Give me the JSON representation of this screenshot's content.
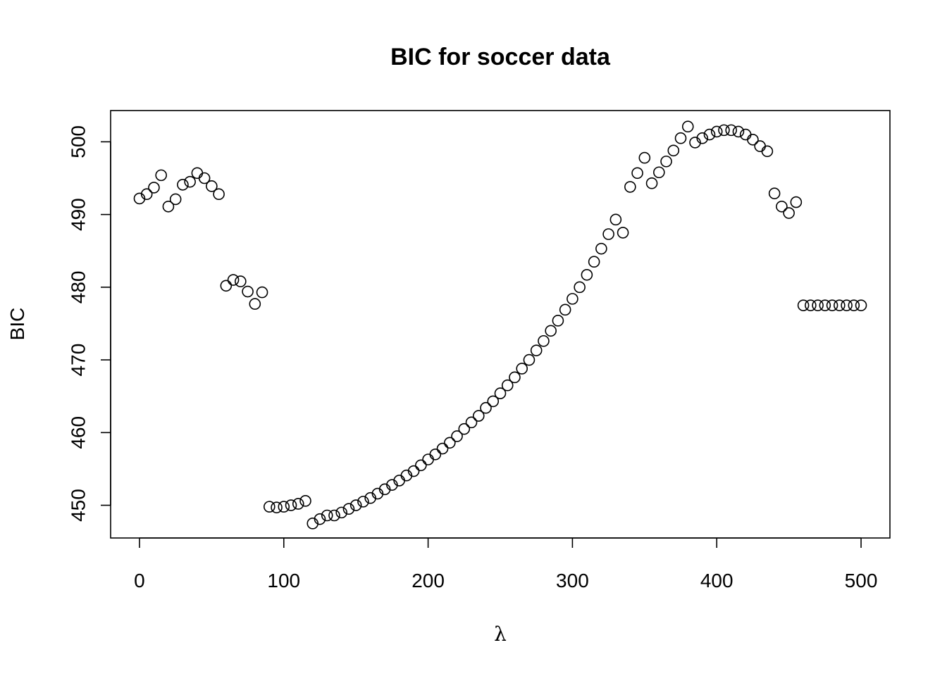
{
  "chart_data": {
    "type": "scatter",
    "title": "BIC for soccer data",
    "xlabel": "λ",
    "ylabel": "BIC",
    "xlim": [
      -20,
      520
    ],
    "ylim": [
      445.5,
      504.3
    ],
    "xticks": [
      0,
      100,
      200,
      300,
      400,
      500
    ],
    "yticks": [
      450,
      460,
      470,
      480,
      490,
      500
    ],
    "grid": false,
    "marker": "open-circle",
    "series": [
      {
        "x": [
          0,
          5,
          10,
          15,
          20,
          25,
          30,
          35,
          40,
          45,
          50,
          55,
          60,
          65,
          70,
          75,
          80,
          85,
          90,
          95,
          100,
          105,
          110,
          115,
          120,
          125,
          130,
          135,
          140,
          145,
          150,
          155,
          160,
          165,
          170,
          175,
          180,
          185,
          190,
          195,
          200,
          205,
          210,
          215,
          220,
          225,
          230,
          235,
          240,
          245,
          250,
          255,
          260,
          265,
          270,
          275,
          280,
          285,
          290,
          295,
          300,
          305,
          310,
          315,
          320,
          325,
          330,
          335,
          340,
          345,
          350,
          355,
          360,
          365,
          370,
          375,
          380,
          385,
          390,
          395,
          400,
          405,
          410,
          415,
          420,
          425,
          430,
          435,
          440,
          445,
          450,
          455,
          460,
          465,
          470,
          475,
          480,
          485,
          490,
          495,
          500
        ],
        "y": [
          492.2,
          492.8,
          493.7,
          495.4,
          491.1,
          492.1,
          494.1,
          494.5,
          495.7,
          495.0,
          493.9,
          492.8,
          480.2,
          481.0,
          480.8,
          479.4,
          477.7,
          479.3,
          449.8,
          449.7,
          449.8,
          450.0,
          450.2,
          450.6,
          447.5,
          448.1,
          448.6,
          448.6,
          449.0,
          449.5,
          450.0,
          450.5,
          451.0,
          451.6,
          452.2,
          452.8,
          453.4,
          454.1,
          454.7,
          455.5,
          456.3,
          457.0,
          457.8,
          458.6,
          459.5,
          460.5,
          461.4,
          462.3,
          463.4,
          464.3,
          465.4,
          466.5,
          467.6,
          468.8,
          470.0,
          471.3,
          472.6,
          474.0,
          475.4,
          476.9,
          478.4,
          480.0,
          481.7,
          483.5,
          485.3,
          487.3,
          489.3,
          487.5,
          493.8,
          495.7,
          497.8,
          494.3,
          495.8,
          497.3,
          498.8,
          500.5,
          502.1,
          499.9,
          500.5,
          501.0,
          501.4,
          501.6,
          501.6,
          501.4,
          501.0,
          500.3,
          499.4,
          498.7,
          492.9,
          491.1,
          490.2,
          491.7,
          477.5,
          477.5,
          477.5,
          477.5,
          477.5,
          477.5,
          477.5,
          477.5,
          477.5
        ]
      }
    ]
  }
}
